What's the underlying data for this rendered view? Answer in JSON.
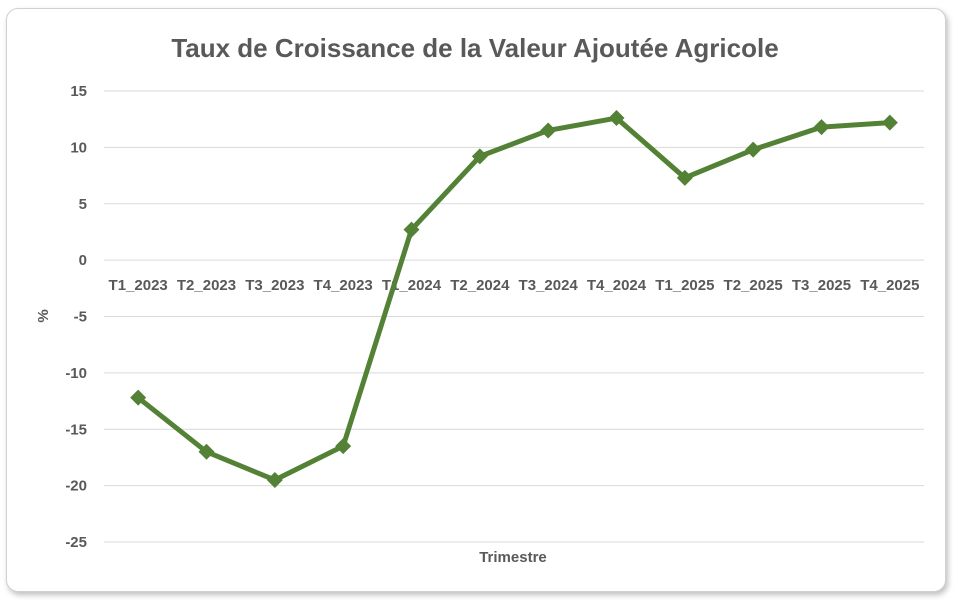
{
  "chart_data": {
    "type": "line",
    "title": "Taux de Croissance de la Valeur Ajoutée Agricole",
    "xlabel": "Trimestre",
    "ylabel": "%",
    "categories": [
      "T1_2023",
      "T2_2023",
      "T3_2023",
      "T4_2023",
      "T1_2024",
      "T2_2024",
      "T3_2024",
      "T4_2024",
      "T1_2025",
      "T2_2025",
      "T3_2025",
      "T4_2025"
    ],
    "series": [
      {
        "values": [
          -12.2,
          -17.0,
          -19.5,
          -16.5,
          2.7,
          9.2,
          11.5,
          12.6,
          7.3,
          9.8,
          11.8,
          12.2
        ]
      }
    ],
    "ylim": [
      -25,
      15
    ],
    "yticks": [
      15,
      10,
      5,
      0,
      -5,
      -10,
      -15,
      -20,
      -25
    ],
    "grid": true,
    "legend": "none",
    "colors": {
      "line": "#538135",
      "grid": "#d9d9d9",
      "text": "#595959"
    },
    "marker": "diamond"
  }
}
